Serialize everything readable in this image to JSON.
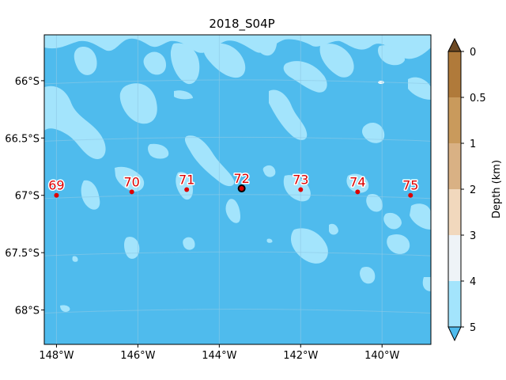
{
  "title": "2018_S04P",
  "map": {
    "lon_range": [
      -148.3,
      -138.8
    ],
    "lat_range": [
      -68.3,
      -65.6
    ],
    "lon_ticks": [
      {
        "value": -148,
        "label": "148°W"
      },
      {
        "value": -146,
        "label": "146°W"
      },
      {
        "value": -144,
        "label": "144°W"
      },
      {
        "value": -142,
        "label": "142°W"
      },
      {
        "value": -140,
        "label": "140°W"
      }
    ],
    "lat_ticks": [
      {
        "value": -66,
        "label": "66°S"
      },
      {
        "value": -66.5,
        "label": "66.5°S"
      },
      {
        "value": -67,
        "label": "67°S"
      },
      {
        "value": -67.5,
        "label": "67.5°S"
      },
      {
        "value": -68,
        "label": "68°S"
      }
    ],
    "colors": {
      "deep": "#4fbbed",
      "shallow": "#a3e4fc",
      "grid": "#8ec9e6",
      "station": "#dd0000",
      "highlight": "#000000"
    }
  },
  "stations": [
    {
      "label": "69",
      "lon": -148.0,
      "lat": -67.0
    },
    {
      "label": "70",
      "lon": -146.15,
      "lat": -66.97
    },
    {
      "label": "71",
      "lon": -144.8,
      "lat": -66.95
    },
    {
      "label": "72",
      "lon": -143.45,
      "lat": -66.94,
      "highlight": true
    },
    {
      "label": "73",
      "lon": -142.0,
      "lat": -66.95
    },
    {
      "label": "74",
      "lon": -140.6,
      "lat": -66.97
    },
    {
      "label": "75",
      "lon": -139.3,
      "lat": -67.0
    }
  ],
  "colorbar": {
    "label": "Depth (km)",
    "ticks": [
      "0",
      "0.5",
      "1",
      "2",
      "3",
      "4",
      "5"
    ],
    "bands": [
      "#b07a3a",
      "#c99a5c",
      "#d9b184",
      "#f1d8bd",
      "#eef3f7",
      "#a3e4fc",
      "#4fbbed"
    ],
    "over_color": "#6e4a24",
    "under_color": "#4fbbed"
  }
}
